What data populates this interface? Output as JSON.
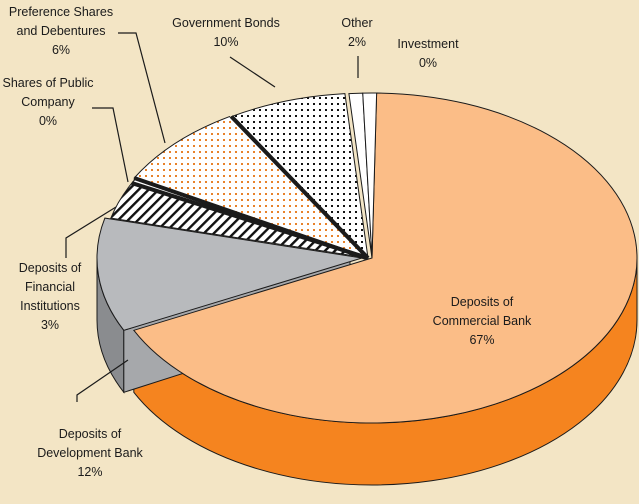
{
  "chart_data": {
    "type": "pie",
    "style": "3d-exploded",
    "slices": [
      {
        "label": "Deposits of Commercial Bank",
        "value": 67,
        "color": "#fbbd87",
        "side_color": "#f5841f",
        "pattern": "none"
      },
      {
        "label": "Deposits of Development Bank",
        "value": 12,
        "color": "#b8babd",
        "side_color": "#8a8c8f",
        "pattern": "none"
      },
      {
        "label": "Deposits of Financial Institutions",
        "value": 3,
        "color": "#ffffff",
        "side_color": "#8a8c8f",
        "pattern": "diagonal-hatch"
      },
      {
        "label": "Shares of Public Company",
        "value": 0,
        "color": "#ffffff",
        "side_color": "#8a8c8f",
        "pattern": "none"
      },
      {
        "label": "Preference Shares and Debentures",
        "value": 6,
        "color": "#ffffff",
        "side_color": "#8a8c8f",
        "pattern": "orange-dots"
      },
      {
        "label": "Government Bonds",
        "value": 10,
        "color": "#ffffff",
        "side_color": "#8a8c8f",
        "pattern": "black-dots"
      },
      {
        "label": "Other",
        "value": 2,
        "color": "#ffffff",
        "side_color": "#8a8c8f",
        "pattern": "none"
      },
      {
        "label": "Investment",
        "value": 0,
        "color": "#ffffff",
        "side_color": "#8a8c8f",
        "pattern": "none"
      }
    ],
    "labels": [
      {
        "lines": [
          "Deposits of",
          "Commercial Bank",
          "67%"
        ]
      },
      {
        "lines": [
          "Deposits of",
          "Development Bank",
          "12%"
        ]
      },
      {
        "lines": [
          "Deposits of",
          "Financial",
          "Institutions",
          "3%"
        ]
      },
      {
        "lines": [
          "Shares of Public",
          "Company",
          "0%"
        ]
      },
      {
        "lines": [
          "Preference Shares",
          "and Debentures",
          "6%"
        ]
      },
      {
        "lines": [
          "Government Bonds",
          "10%"
        ]
      },
      {
        "lines": [
          "Other",
          "2%"
        ]
      },
      {
        "lines": [
          "Investment",
          "0%"
        ]
      }
    ]
  }
}
